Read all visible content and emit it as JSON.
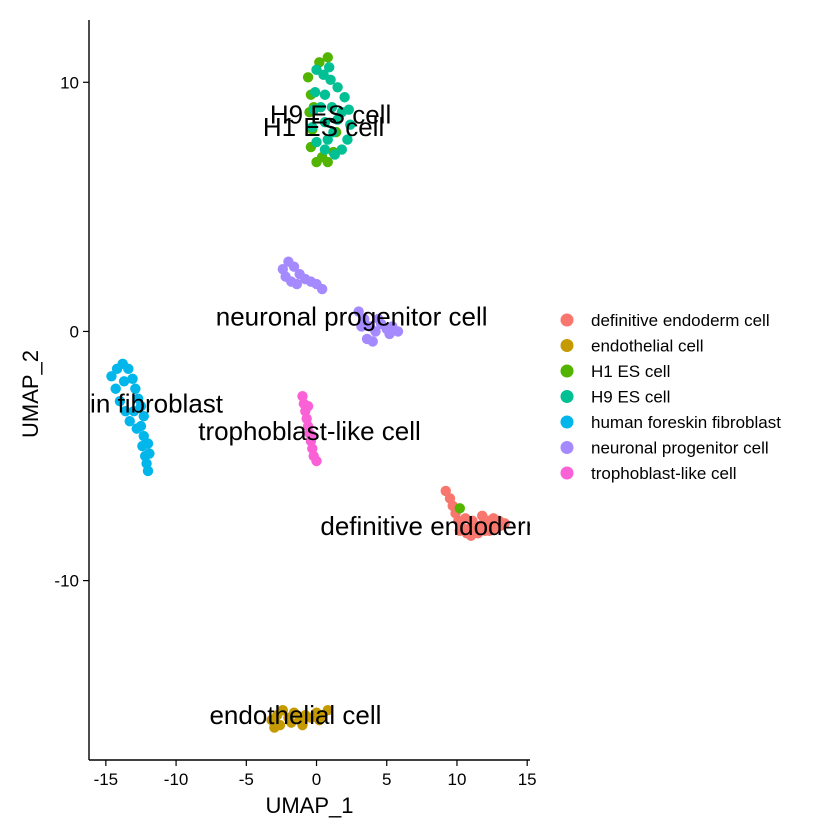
{
  "chart_data": {
    "type": "scatter",
    "xlabel": "UMAP_1",
    "ylabel": "UMAP_2",
    "xlim": [
      -16.2,
      15.2
    ],
    "ylim": [
      -17.2,
      12.5
    ],
    "xticks": [
      -15,
      -10,
      -5,
      0,
      5,
      10,
      15
    ],
    "xtick_labels": [
      "-15",
      "-10",
      "-5",
      "0",
      "5",
      "10",
      "15"
    ],
    "yticks": [
      10,
      0,
      -10
    ],
    "ytick_labels": [
      "10",
      "0",
      "-10"
    ],
    "grid": false,
    "legend_position": "right",
    "series": [
      {
        "name": "definitive endoderm cell",
        "color": "#F8766D",
        "label": "definitive endoderm cell",
        "label_at": [
          10.0,
          -7.8
        ],
        "points": [
          [
            9.2,
            -6.4
          ],
          [
            9.5,
            -6.7
          ],
          [
            9.7,
            -7.0
          ],
          [
            9.9,
            -7.3
          ],
          [
            10.1,
            -7.6
          ],
          [
            10.4,
            -7.9
          ],
          [
            10.7,
            -8.1
          ],
          [
            11.0,
            -8.2
          ],
          [
            11.3,
            -8.0
          ],
          [
            11.6,
            -7.8
          ],
          [
            11.9,
            -7.7
          ],
          [
            12.2,
            -7.6
          ],
          [
            12.5,
            -7.8
          ],
          [
            12.8,
            -7.9
          ],
          [
            13.1,
            -7.8
          ],
          [
            13.4,
            -7.7
          ],
          [
            10.6,
            -7.5
          ],
          [
            11.1,
            -7.6
          ],
          [
            11.5,
            -8.1
          ],
          [
            12.0,
            -8.0
          ],
          [
            12.6,
            -7.5
          ],
          [
            13.0,
            -7.6
          ],
          [
            10.2,
            -8.0
          ],
          [
            10.9,
            -7.9
          ],
          [
            11.8,
            -7.4
          ],
          [
            12.3,
            -8.0
          ]
        ]
      },
      {
        "name": "endothelial cell",
        "color": "#C49A00",
        "label": "endothelial cell",
        "label_at": [
          -1.5,
          -15.4
        ],
        "points": [
          [
            -3.2,
            -15.6
          ],
          [
            -2.8,
            -15.4
          ],
          [
            -2.4,
            -15.2
          ],
          [
            -2.0,
            -15.5
          ],
          [
            -1.6,
            -15.3
          ],
          [
            -1.2,
            -15.6
          ],
          [
            -0.8,
            -15.4
          ],
          [
            -0.4,
            -15.5
          ],
          [
            0.0,
            -15.3
          ],
          [
            0.4,
            -15.4
          ],
          [
            0.8,
            -15.2
          ],
          [
            -2.6,
            -15.8
          ],
          [
            -1.8,
            -15.7
          ],
          [
            -1.0,
            -15.8
          ],
          [
            0.2,
            -15.6
          ],
          [
            -3.0,
            -15.9
          ]
        ]
      },
      {
        "name": "H1 ES cell",
        "color": "#53B400",
        "label": "H1 ES cell",
        "label_at": [
          0.5,
          8.2
        ],
        "points": [
          [
            -0.6,
            10.2
          ],
          [
            -0.4,
            9.5
          ],
          [
            -0.5,
            8.8
          ],
          [
            -0.3,
            8.1
          ],
          [
            -0.4,
            7.4
          ],
          [
            0.0,
            6.8
          ],
          [
            0.4,
            7.0
          ],
          [
            0.8,
            6.8
          ],
          [
            1.2,
            7.2
          ],
          [
            0.2,
            10.8
          ],
          [
            0.8,
            11.0
          ],
          [
            -0.2,
            9.0
          ],
          [
            1.4,
            8.0
          ],
          [
            10.2,
            -7.1
          ]
        ]
      },
      {
        "name": "H9 ES cell",
        "color": "#00C094",
        "label": "H9 ES cell",
        "label_at": [
          1.0,
          8.7
        ],
        "points": [
          [
            0.0,
            10.5
          ],
          [
            0.5,
            10.3
          ],
          [
            1.0,
            10.1
          ],
          [
            1.5,
            9.8
          ],
          [
            2.0,
            9.4
          ],
          [
            2.3,
            8.9
          ],
          [
            2.4,
            8.3
          ],
          [
            2.2,
            7.7
          ],
          [
            1.8,
            7.3
          ],
          [
            1.3,
            7.1
          ],
          [
            0.6,
            7.3
          ],
          [
            0.0,
            7.6
          ],
          [
            -0.3,
            8.2
          ],
          [
            -0.2,
            8.9
          ],
          [
            -0.1,
            9.6
          ],
          [
            0.6,
            9.5
          ],
          [
            1.1,
            9.0
          ],
          [
            1.5,
            8.5
          ],
          [
            1.2,
            8.0
          ],
          [
            0.6,
            8.4
          ],
          [
            0.3,
            9.0
          ],
          [
            0.9,
            10.6
          ],
          [
            1.8,
            8.8
          ],
          [
            0.8,
            7.7
          ]
        ]
      },
      {
        "name": "human foreskin fibroblast",
        "color": "#00B6EB",
        "label": "human foreskin fibroblast",
        "label_at": [
          -17.0,
          -2.9
        ],
        "points": [
          [
            -14.6,
            -1.8
          ],
          [
            -14.2,
            -1.5
          ],
          [
            -13.8,
            -1.3
          ],
          [
            -13.4,
            -1.5
          ],
          [
            -13.1,
            -1.9
          ],
          [
            -12.9,
            -2.3
          ],
          [
            -12.7,
            -2.7
          ],
          [
            -12.5,
            -3.0
          ],
          [
            -12.3,
            -3.4
          ],
          [
            -12.5,
            -3.8
          ],
          [
            -12.3,
            -4.2
          ],
          [
            -12.0,
            -4.5
          ],
          [
            -11.9,
            -4.9
          ],
          [
            -12.1,
            -5.3
          ],
          [
            -12.0,
            -5.6
          ],
          [
            -14.3,
            -2.3
          ],
          [
            -14.0,
            -2.8
          ],
          [
            -13.6,
            -3.2
          ],
          [
            -13.3,
            -3.6
          ],
          [
            -12.8,
            -3.9
          ],
          [
            -12.4,
            -4.6
          ],
          [
            -12.2,
            -5.0
          ],
          [
            -13.0,
            -3.2
          ],
          [
            -13.7,
            -2.0
          ]
        ]
      },
      {
        "name": "neuronal progenitor cell",
        "color": "#A58AFF",
        "label": "neuronal progenitor cell",
        "label_at": [
          2.5,
          0.6
        ],
        "points": [
          [
            -2.4,
            2.5
          ],
          [
            -2.0,
            2.8
          ],
          [
            -1.6,
            2.6
          ],
          [
            -1.2,
            2.3
          ],
          [
            -0.8,
            2.1
          ],
          [
            -0.4,
            2.0
          ],
          [
            0.0,
            1.9
          ],
          [
            0.4,
            1.7
          ],
          [
            -2.2,
            2.2
          ],
          [
            -1.8,
            2.0
          ],
          [
            -1.4,
            1.9
          ],
          [
            3.0,
            0.8
          ],
          [
            3.4,
            0.5
          ],
          [
            3.8,
            0.2
          ],
          [
            4.2,
            0.0
          ],
          [
            4.6,
            0.3
          ],
          [
            5.0,
            0.1
          ],
          [
            5.4,
            0.2
          ],
          [
            5.8,
            0.0
          ],
          [
            3.6,
            -0.3
          ],
          [
            4.0,
            -0.4
          ],
          [
            4.4,
            0.5
          ],
          [
            5.2,
            -0.1
          ],
          [
            3.2,
            0.2
          ]
        ]
      },
      {
        "name": "trophoblast-like cell",
        "color": "#FB61D7",
        "label": "trophoblast-like cell",
        "label_at": [
          -0.5,
          -4.0
        ],
        "points": [
          [
            -1.0,
            -2.6
          ],
          [
            -0.9,
            -2.9
          ],
          [
            -0.8,
            -3.2
          ],
          [
            -0.7,
            -3.5
          ],
          [
            -0.6,
            -3.8
          ],
          [
            -0.5,
            -4.1
          ],
          [
            -0.4,
            -4.4
          ],
          [
            -0.3,
            -4.7
          ],
          [
            -0.2,
            -5.0
          ],
          [
            0.0,
            -5.2
          ],
          [
            -0.6,
            -3.0
          ],
          [
            -0.3,
            -4.2
          ]
        ]
      }
    ]
  }
}
